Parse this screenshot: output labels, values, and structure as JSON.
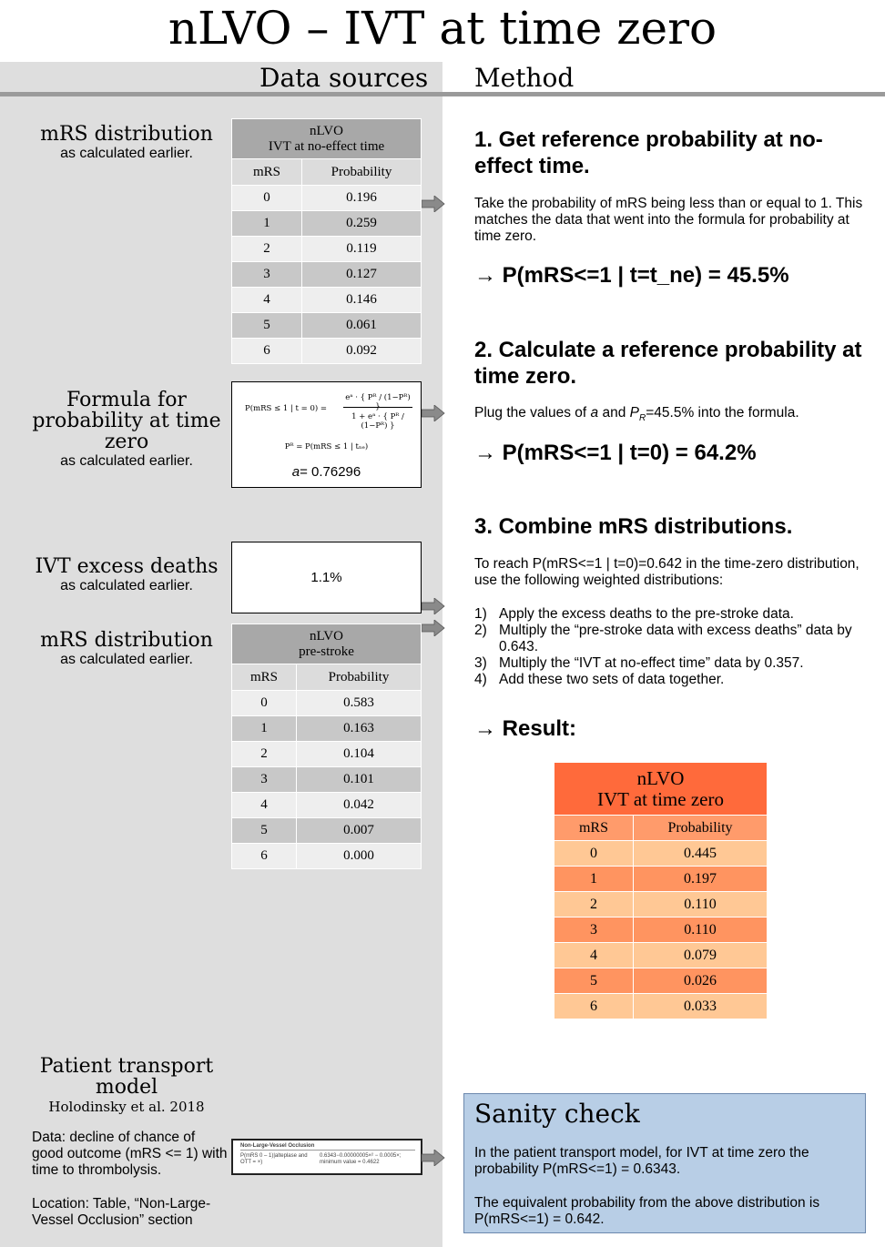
{
  "title": "nLVO – IVT at time zero",
  "headers": {
    "data_sources": "Data sources",
    "method": "Method"
  },
  "sources": {
    "mrs_no_effect": {
      "title": "mRS distribution",
      "subtitle": "as calculated earlier.",
      "table": {
        "header": [
          "nLVO",
          "IVT at no-effect time"
        ],
        "columns": [
          "mRS",
          "Probability"
        ],
        "rows": [
          [
            "0",
            "0.196"
          ],
          [
            "1",
            "0.259"
          ],
          [
            "2",
            "0.119"
          ],
          [
            "3",
            "0.127"
          ],
          [
            "4",
            "0.146"
          ],
          [
            "5",
            "0.061"
          ],
          [
            "6",
            "0.092"
          ]
        ]
      }
    },
    "formula": {
      "title": "Formula for probability at time zero",
      "subtitle": "as calculated earlier.",
      "eq_lhs": "P(mRS ≤ 1 | t = 0) =",
      "eq_num": "eᵃ · { Pᴿ / (1−Pᴿ) }",
      "eq_den": "1 + eᵃ · { Pᴿ / (1−Pᴿ) }",
      "eq_pr": "Pᴿ = P(mRS ≤ 1 | tₙₑ)",
      "a_label": "a",
      "a_value": "= 0.76296"
    },
    "excess": {
      "title": "IVT excess deaths",
      "subtitle": "as calculated earlier.",
      "value": "1.1%"
    },
    "mrs_pre_stroke": {
      "title": "mRS distribution",
      "subtitle": "as calculated earlier.",
      "table": {
        "header": [
          "nLVO",
          "pre-stroke"
        ],
        "columns": [
          "mRS",
          "Probability"
        ],
        "rows": [
          [
            "0",
            "0.583"
          ],
          [
            "1",
            "0.163"
          ],
          [
            "2",
            "0.104"
          ],
          [
            "3",
            "0.101"
          ],
          [
            "4",
            "0.042"
          ],
          [
            "5",
            "0.007"
          ],
          [
            "6",
            "0.000"
          ]
        ]
      }
    },
    "transport": {
      "title": "Patient transport model",
      "citation": "Holodinsky et al. 2018",
      "data_note": "Data: decline of chance of good outcome (mRS <= 1) with time to thrombolysis.",
      "location_note": "Location: Table, “Non-Large-Vessel Occlusion” section",
      "mini_title": "Non-Large-Vessel Occlusion",
      "mini_left": "P(mRS 0 – 1)|alteplase and OTT = ×)",
      "mini_right": "0.6343−0.00000005×² − 0.0005×; minimum value = 0.4622"
    }
  },
  "method": {
    "step1": {
      "title": "1. Get reference probability at no-effect time.",
      "body": "Take the probability of mRS being less than or equal to 1. This matches the data that went into the formula for probability at time zero.",
      "result": "→ P(mRS<=1 | t=t_ne) = 45.5%"
    },
    "step2": {
      "title": "2. Calculate a reference probability at time zero.",
      "body_a": "Plug the values of ",
      "body_a_var": "a",
      "body_b": " and ",
      "body_p": "P",
      "body_p_sub": "R",
      "body_c": "=45.5% into the formula.",
      "result": "→ P(mRS<=1 | t=0) = 64.2%"
    },
    "step3": {
      "title": "3. Combine mRS distributions.",
      "body": "To reach P(mRS<=1 | t=0)=0.642 in the time-zero distribution, use the following weighted distributions:",
      "items": [
        {
          "num": "1)",
          "text": "Apply the excess deaths to the pre-stroke data."
        },
        {
          "num": "2)",
          "text": "Multiply the “pre-stroke data with excess deaths” data by 0.643."
        },
        {
          "num": "3)",
          "text": "Multiply the “IVT at no-effect time” data by 0.357."
        },
        {
          "num": "4)",
          "text": "Add these two sets of data together."
        }
      ],
      "result": "→ Result:"
    },
    "result_table": {
      "header": [
        "nLVO",
        "IVT at time zero"
      ],
      "columns": [
        "mRS",
        "Probability"
      ],
      "rows": [
        [
          "0",
          "0.445"
        ],
        [
          "1",
          "0.197"
        ],
        [
          "2",
          "0.110"
        ],
        [
          "3",
          "0.110"
        ],
        [
          "4",
          "0.079"
        ],
        [
          "5",
          "0.026"
        ],
        [
          "6",
          "0.033"
        ]
      ]
    }
  },
  "sanity": {
    "title": "Sanity check",
    "p1": "In the patient transport model, for IVT at time zero the probability P(mRS<=1) = 0.6343.",
    "p2": "The equivalent probability from the above distribution is P(mRS<=1) = 0.642."
  },
  "colors": {
    "left_panel": "#dedede",
    "result_header": "#ff6a3b",
    "result_dark": "#ff9460",
    "result_light": "#ffc895",
    "sanity_bg": "#b8cee6",
    "arrow": "#8a8a8a"
  }
}
